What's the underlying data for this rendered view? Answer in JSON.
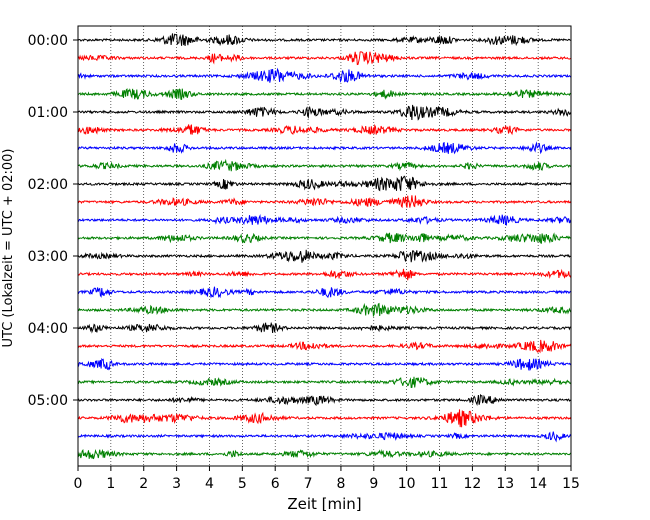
{
  "chart_data": {
    "type": "line",
    "title": "",
    "xlabel": "Zeit  [min]",
    "ylabel": "UTC (Lokalzeit = UTC + 02:00)",
    "xlim": [
      0,
      15
    ],
    "x_ticks": [
      "0",
      "1",
      "2",
      "3",
      "4",
      "5",
      "6",
      "7",
      "8",
      "9",
      "10",
      "11",
      "12",
      "13",
      "14",
      "15"
    ],
    "y_tick_labels": [
      "00:00",
      "01:00",
      "02:00",
      "03:00",
      "04:00",
      "05:00"
    ],
    "y_tick_rows": [
      0,
      4,
      8,
      12,
      16,
      20
    ],
    "trace_count": 24,
    "trace_interval_min": 15,
    "trace_colors": [
      "#000000",
      "#ff0000",
      "#0000ff",
      "#008000"
    ],
    "grid": "vertical dotted at each minute",
    "legend": "none"
  }
}
